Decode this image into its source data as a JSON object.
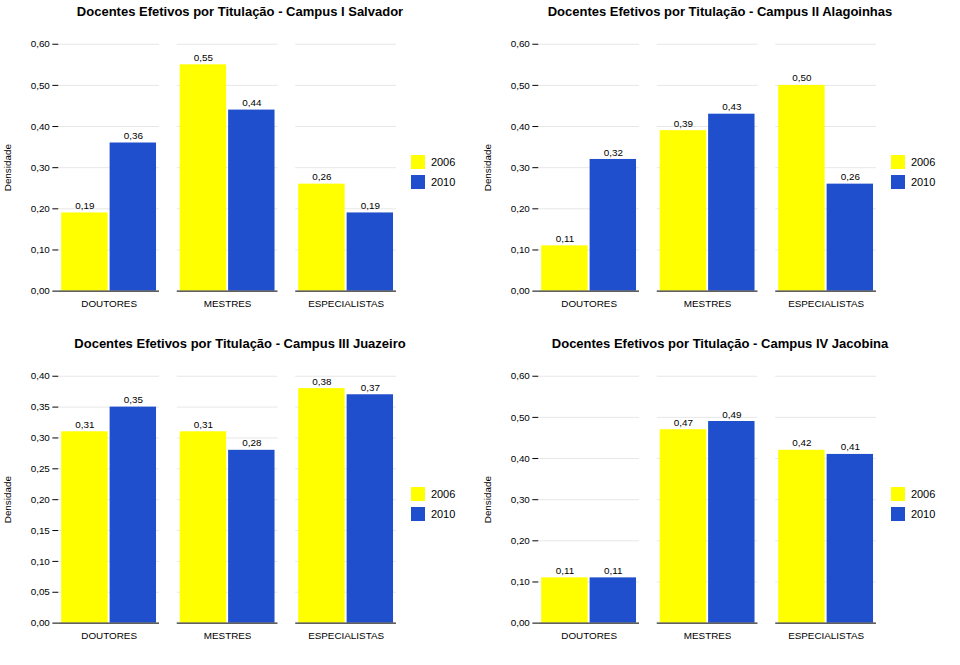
{
  "chart_data": [
    {
      "type": "bar",
      "title": "Docentes Efetivos por Titulação - Campus I Salvador",
      "categories": [
        "DOUTORES",
        "MESTRES",
        "ESPECIALISTAS"
      ],
      "series": [
        {
          "name": "2006",
          "color": "#FFFF00",
          "values": [
            0.19,
            0.55,
            0.26
          ],
          "value_labels": [
            "0,19",
            "0,55",
            "0,26"
          ]
        },
        {
          "name": "2010",
          "color": "#1F4FCC",
          "values": [
            0.36,
            0.44,
            0.19
          ],
          "value_labels": [
            "0,36",
            "0,44",
            "0,19"
          ]
        }
      ],
      "ylabel": "Densidade",
      "ylim": [
        0.0,
        0.6
      ],
      "yticks": [
        {
          "value": 0.0,
          "label": "0,00"
        },
        {
          "value": 0.1,
          "label": "0,10"
        },
        {
          "value": 0.2,
          "label": "0,20"
        },
        {
          "value": 0.3,
          "label": "0,30"
        },
        {
          "value": 0.4,
          "label": "0,40"
        },
        {
          "value": 0.5,
          "label": "0,50"
        },
        {
          "value": 0.6,
          "label": "0,60"
        }
      ],
      "grid": true,
      "data_labels": true,
      "legend": "right"
    },
    {
      "type": "bar",
      "title": "Docentes Efetivos por Titulação - Campus II Alagoinhas",
      "categories": [
        "DOUTORES",
        "MESTRES",
        "ESPECIALISTAS"
      ],
      "series": [
        {
          "name": "2006",
          "color": "#FFFF00",
          "values": [
            0.11,
            0.39,
            0.5
          ],
          "value_labels": [
            "0,11",
            "0,39",
            "0,50"
          ]
        },
        {
          "name": "2010",
          "color": "#1F4FCC",
          "values": [
            0.32,
            0.43,
            0.26
          ],
          "value_labels": [
            "0,32",
            "0,43",
            "0,26"
          ]
        }
      ],
      "ylabel": "Densidade",
      "ylim": [
        0.0,
        0.6
      ],
      "yticks": [
        {
          "value": 0.0,
          "label": "0,00"
        },
        {
          "value": 0.1,
          "label": "0,10"
        },
        {
          "value": 0.2,
          "label": "0,20"
        },
        {
          "value": 0.3,
          "label": "0,30"
        },
        {
          "value": 0.4,
          "label": "0,40"
        },
        {
          "value": 0.5,
          "label": "0,50"
        },
        {
          "value": 0.6,
          "label": "0,60"
        }
      ],
      "grid": true,
      "data_labels": true,
      "legend": "right"
    },
    {
      "type": "bar",
      "title": "Docentes Efetivos por Titulação - Campus III Juazeiro",
      "categories": [
        "DOUTORES",
        "MESTRES",
        "ESPECIALISTAS"
      ],
      "series": [
        {
          "name": "2006",
          "color": "#FFFF00",
          "values": [
            0.31,
            0.31,
            0.38
          ],
          "value_labels": [
            "0,31",
            "0,31",
            "0,38"
          ]
        },
        {
          "name": "2010",
          "color": "#1F4FCC",
          "values": [
            0.35,
            0.28,
            0.37
          ],
          "value_labels": [
            "0,35",
            "0,28",
            "0,37"
          ]
        }
      ],
      "ylabel": "Densidade",
      "ylim": [
        0.0,
        0.4
      ],
      "yticks": [
        {
          "value": 0.0,
          "label": "0,00"
        },
        {
          "value": 0.05,
          "label": "0,05"
        },
        {
          "value": 0.1,
          "label": "0,10"
        },
        {
          "value": 0.15,
          "label": "0,15"
        },
        {
          "value": 0.2,
          "label": "0,20"
        },
        {
          "value": 0.25,
          "label": "0,25"
        },
        {
          "value": 0.3,
          "label": "0,30"
        },
        {
          "value": 0.35,
          "label": "0,35"
        },
        {
          "value": 0.4,
          "label": "0,40"
        }
      ],
      "grid": true,
      "data_labels": true,
      "legend": "right"
    },
    {
      "type": "bar",
      "title": "Docentes Efetivos por Titulação - Campus IV Jacobina",
      "categories": [
        "DOUTORES",
        "MESTRES",
        "ESPECIALISTAS"
      ],
      "series": [
        {
          "name": "2006",
          "color": "#FFFF00",
          "values": [
            0.11,
            0.47,
            0.42
          ],
          "value_labels": [
            "0,11",
            "0,47",
            "0,42"
          ]
        },
        {
          "name": "2010",
          "color": "#1F4FCC",
          "values": [
            0.11,
            0.49,
            0.41
          ],
          "value_labels": [
            "0,11",
            "0,49",
            "0,41"
          ]
        }
      ],
      "ylabel": "Densidade",
      "ylim": [
        0.0,
        0.6
      ],
      "yticks": [
        {
          "value": 0.0,
          "label": "0,00"
        },
        {
          "value": 0.1,
          "label": "0,10"
        },
        {
          "value": 0.2,
          "label": "0,20"
        },
        {
          "value": 0.3,
          "label": "0,30"
        },
        {
          "value": 0.4,
          "label": "0,40"
        },
        {
          "value": 0.5,
          "label": "0,50"
        },
        {
          "value": 0.6,
          "label": "0,60"
        }
      ],
      "grid": true,
      "data_labels": true,
      "legend": "right"
    }
  ]
}
